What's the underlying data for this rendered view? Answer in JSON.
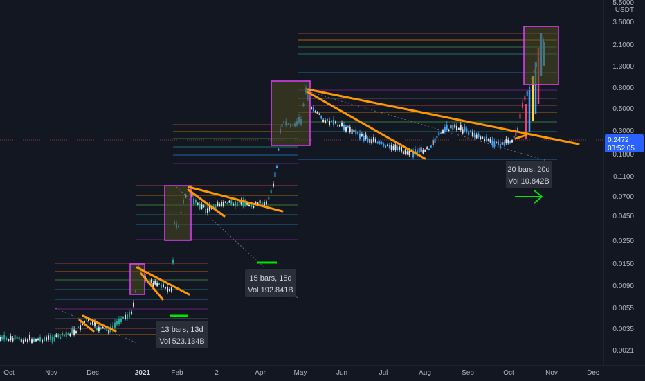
{
  "symbol": {
    "quote": "USDT"
  },
  "price_axis": {
    "ticks": [
      "5.5000",
      "3.5000",
      "2.1000",
      "1.3000",
      "0.8000",
      "0.5000",
      "0.3000",
      "0.1800",
      "0.1100",
      "0.0700",
      "0.0450",
      "0.0250",
      "0.0150",
      "0.0090",
      "0.0055",
      "0.0035",
      "0.0021"
    ]
  },
  "time_axis": {
    "ticks": [
      {
        "label": "Oct",
        "bold": false
      },
      {
        "label": "Nov",
        "bold": false
      },
      {
        "label": "Dec",
        "bold": false
      },
      {
        "label": "2021",
        "bold": true
      },
      {
        "label": "Feb",
        "bold": false
      },
      {
        "label": "2",
        "bold": false
      },
      {
        "label": "Apr",
        "bold": false
      },
      {
        "label": "May",
        "bold": false
      },
      {
        "label": "Jun",
        "bold": false
      },
      {
        "label": "Jul",
        "bold": false
      },
      {
        "label": "Aug",
        "bold": false
      },
      {
        "label": "Sep",
        "bold": false
      },
      {
        "label": "Oct",
        "bold": false
      },
      {
        "label": "Nov",
        "bold": false
      },
      {
        "label": "Dec",
        "bold": false
      }
    ]
  },
  "current_price": {
    "value": "0.2472",
    "countdown": "03:52:05",
    "color": "#2962ff"
  },
  "measure_labels": [
    {
      "line1": "13 bars, 13d",
      "line2": "Vol 523.134B"
    },
    {
      "line1": "15 bars, 15d",
      "line2": "Vol 192.841B"
    },
    {
      "line1": "20 bars, 20d",
      "line2": "Vol 10.842B"
    }
  ],
  "colors": {
    "background": "#131722",
    "trendline": "#ff9800",
    "box_border": "#e040fb",
    "box_fill": "#4a4a1f",
    "candle_up": "#26a69a",
    "candle_blue": "#42a5f5",
    "candle_white": "#e0e3eb",
    "candle_pink": "#ec407a",
    "marker_green": "#00e600"
  }
}
